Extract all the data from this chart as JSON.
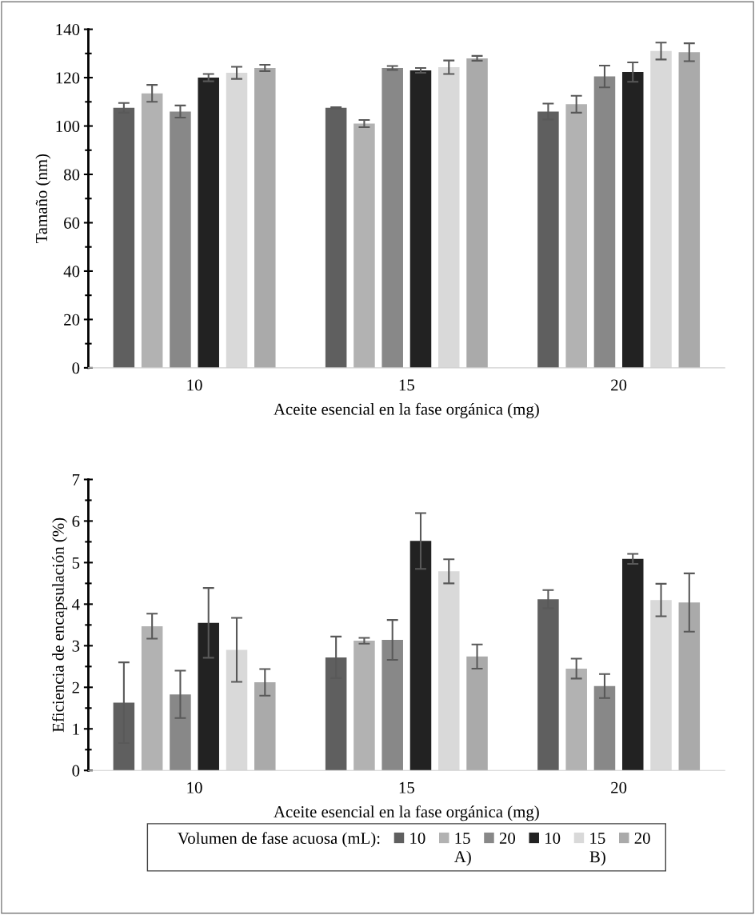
{
  "chart_data": [
    {
      "type": "bar",
      "categories": [
        "10",
        "15",
        "20"
      ],
      "xlabel": "Aceite esencial en la fase orgánica (mg)",
      "ylabel": "Tamaño (nm)",
      "ylim": [
        0,
        140
      ],
      "yticks": [
        0,
        20,
        40,
        60,
        80,
        100,
        120,
        140
      ],
      "grid": false,
      "legend": false,
      "series": [
        {
          "color": "#5f5f5f",
          "values": [
            107.5,
            107.5,
            106
          ],
          "errors": [
            2,
            0.3,
            3.3
          ]
        },
        {
          "color": "#b2b2b2",
          "values": [
            113.5,
            101,
            109
          ],
          "errors": [
            3.5,
            1.5,
            3.5
          ]
        },
        {
          "color": "#888888",
          "values": [
            106,
            124,
            120.5
          ],
          "errors": [
            2.5,
            0.8,
            4.5
          ]
        },
        {
          "color": "#222222",
          "values": [
            120,
            123,
            122.3
          ],
          "errors": [
            1.5,
            1,
            4
          ]
        },
        {
          "color": "#d9d9d9",
          "values": [
            122,
            124.3,
            131
          ],
          "errors": [
            2.5,
            2.8,
            3.5
          ]
        },
        {
          "color": "#aaaaaa",
          "values": [
            124,
            128,
            130.5
          ],
          "errors": [
            1.3,
            1,
            3.7
          ]
        }
      ]
    },
    {
      "type": "bar",
      "categories": [
        "10",
        "15",
        "20"
      ],
      "xlabel": "Aceite esencial en la fase orgánica (mg)",
      "ylabel": "Eficiencia de encapsulación (%)",
      "ylim": [
        0,
        7
      ],
      "yticks": [
        0,
        1,
        2,
        3,
        4,
        5,
        6,
        7
      ],
      "grid": false,
      "legend": "bottom",
      "legend_title": "Volumen de fase acuosa (mL):",
      "annotations": [
        "A)",
        "B)"
      ],
      "series": [
        {
          "name": "10",
          "color": "#5f5f5f",
          "values": [
            1.63,
            2.72,
            4.12
          ],
          "errors": [
            0.97,
            0.5,
            0.22
          ]
        },
        {
          "name": "15",
          "color": "#b2b2b2",
          "values": [
            3.47,
            3.12,
            2.45
          ],
          "errors": [
            0.3,
            0.07,
            0.24
          ]
        },
        {
          "name": "20",
          "color": "#888888",
          "values": [
            1.83,
            3.14,
            2.03
          ],
          "errors": [
            0.57,
            0.48,
            0.29
          ]
        },
        {
          "name": "10",
          "color": "#222222",
          "values": [
            3.55,
            5.52,
            5.09
          ],
          "errors": [
            0.84,
            0.67,
            0.12
          ]
        },
        {
          "name": "15",
          "color": "#d9d9d9",
          "values": [
            2.9,
            4.79,
            4.1
          ],
          "errors": [
            0.77,
            0.29,
            0.39
          ]
        },
        {
          "name": "20",
          "color": "#aaaaaa",
          "values": [
            2.12,
            2.74,
            4.04
          ],
          "errors": [
            0.32,
            0.29,
            0.7
          ]
        }
      ]
    }
  ]
}
